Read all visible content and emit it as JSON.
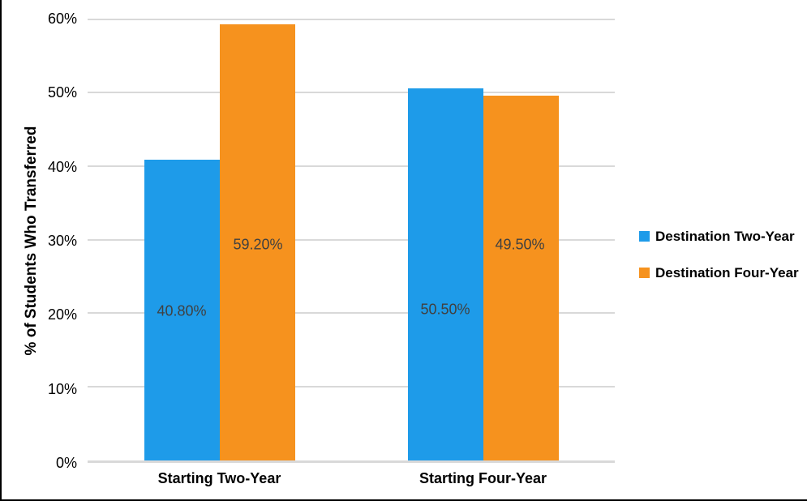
{
  "chart_data": {
    "type": "bar",
    "title": "",
    "ylabel": "% of Students Who Transferred",
    "xlabel": "",
    "categories": [
      "Starting Two-Year",
      "Starting Four-Year"
    ],
    "series": [
      {
        "name": "Destination Two-Year",
        "color": "#1e9be9",
        "values": [
          40.8,
          50.5
        ],
        "labels": [
          "40.80%",
          "50.50%"
        ]
      },
      {
        "name": "Destination Four-Year",
        "color": "#f6921e",
        "values": [
          59.2,
          49.5
        ],
        "labels": [
          "59.20%",
          "49.50%"
        ]
      }
    ],
    "ylim": [
      0,
      60
    ],
    "y_tick_step": 10,
    "y_tick_labels": [
      "60%",
      "50%",
      "40%",
      "30%",
      "20%",
      "10%",
      "0%"
    ],
    "grid": true,
    "gridline_color": "#d9d9d9",
    "legend_position": "right",
    "data_label_color": "#404040"
  }
}
